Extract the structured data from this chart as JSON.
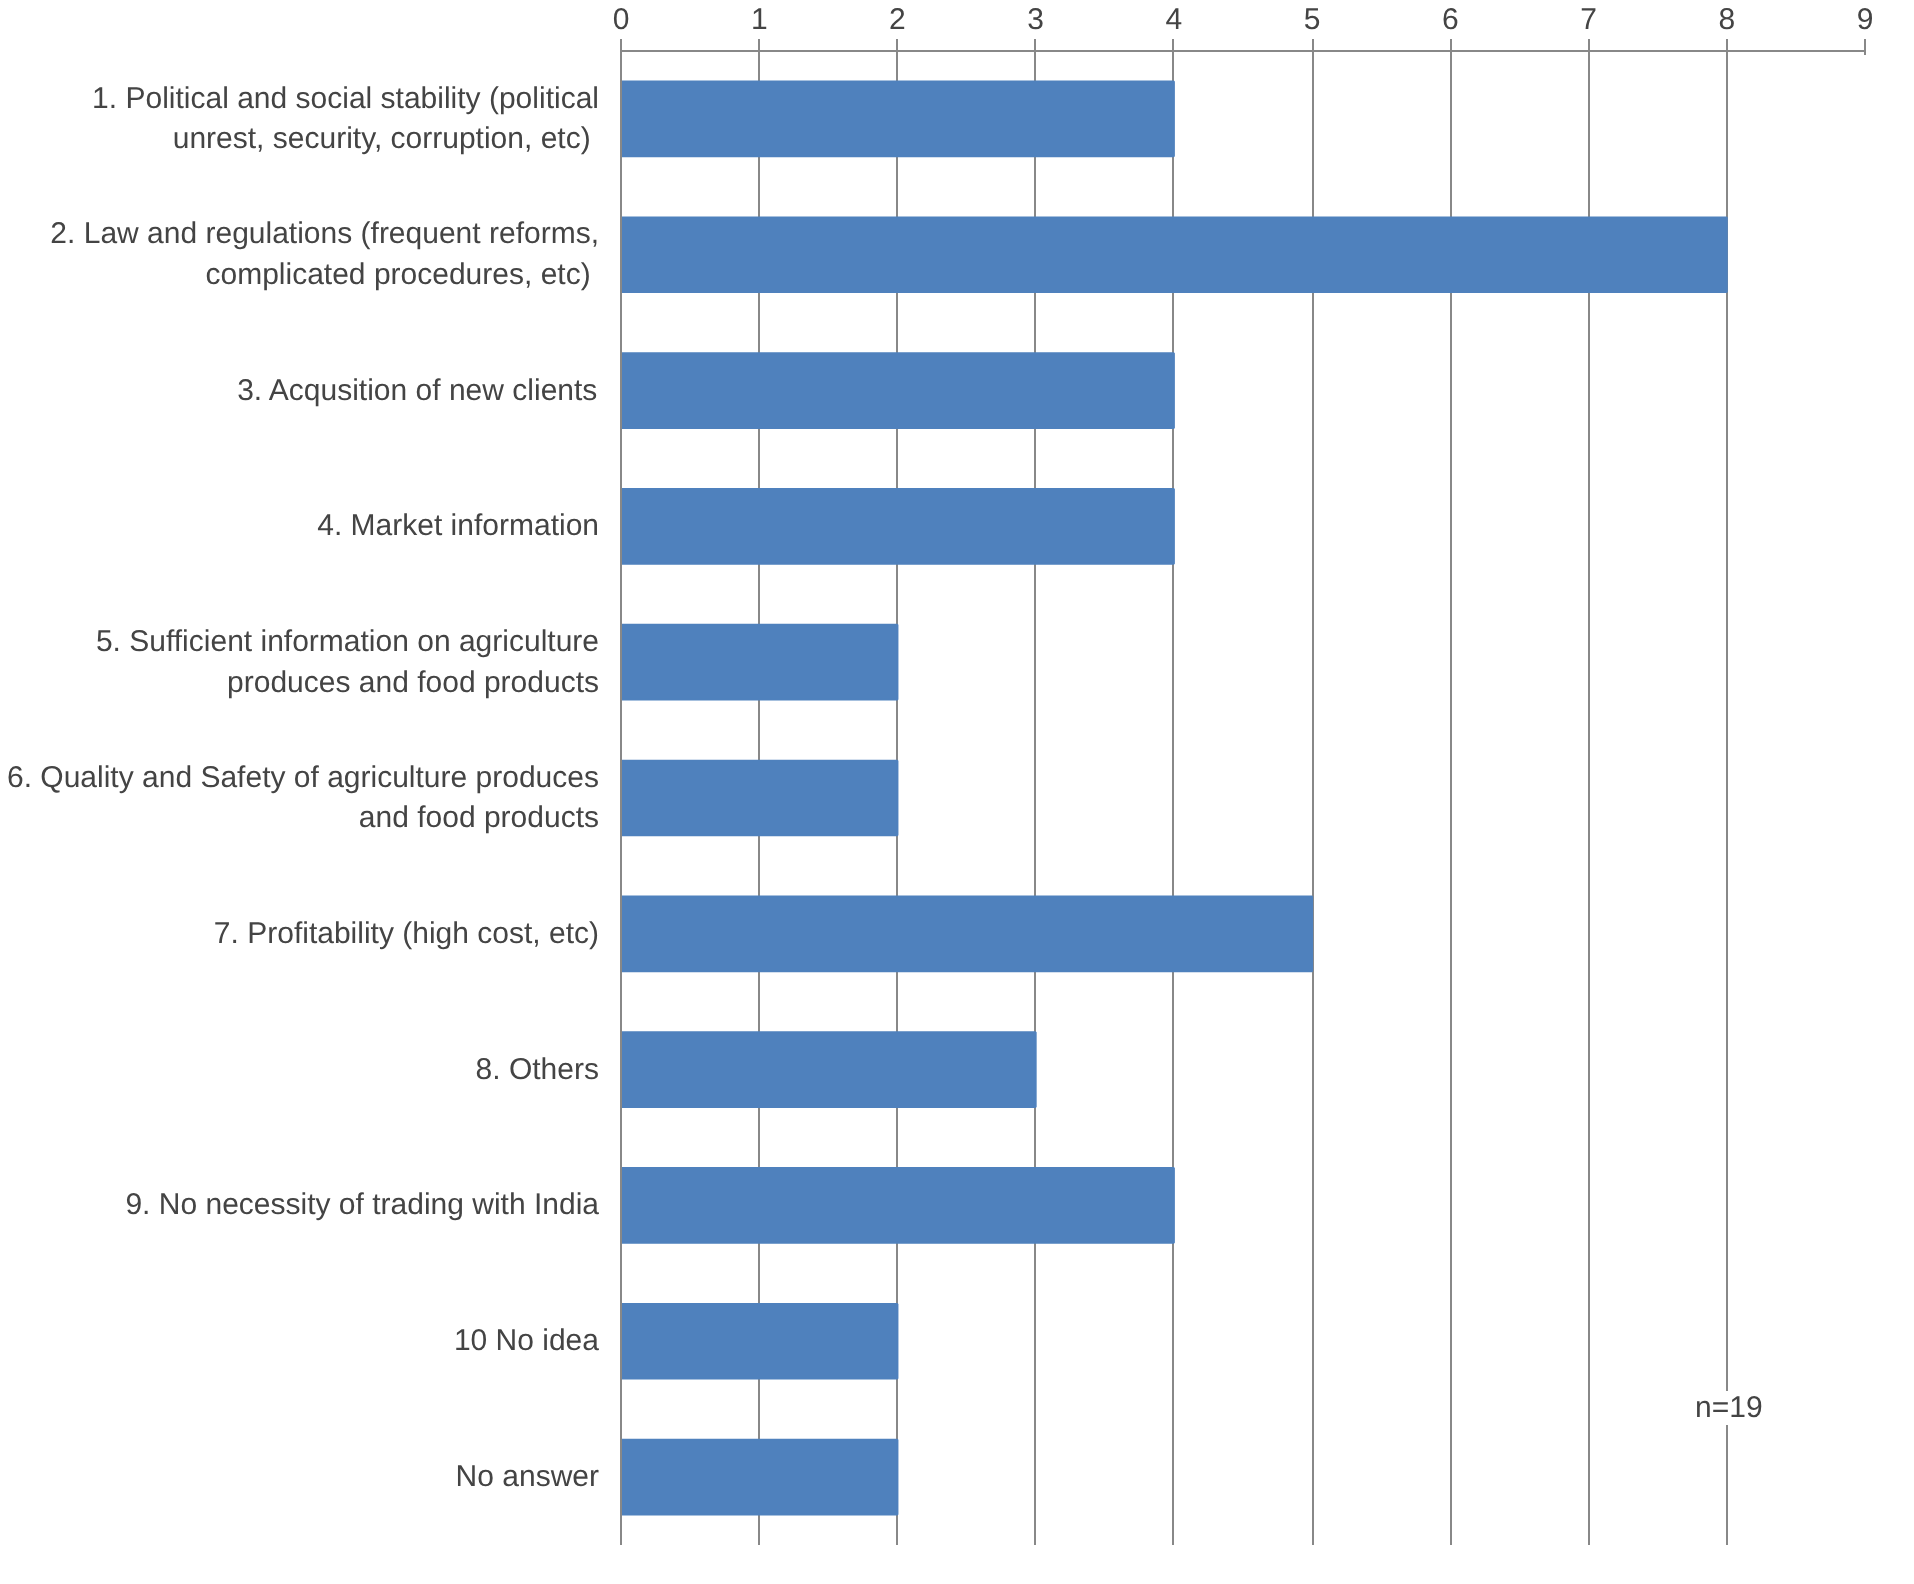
{
  "chart_data": {
    "type": "bar",
    "orientation": "horizontal",
    "categories": [
      "1. Political and social stability (political unrest, security, corruption,  etc)",
      "2. Law and regulations (frequent reforms, complicated procedures,  etc)",
      "3. Acqusition of new clients",
      "4. Market information",
      "5. Sufficient information on agriculture produces and food products",
      "6. Quality and Safety of agriculture produces and food products",
      "7. Profitability (high cost, etc)",
      "8. Others",
      "9. No necessity of trading with India",
      "10 No idea",
      "No answer"
    ],
    "values": [
      4,
      8,
      4,
      4,
      2,
      2,
      5,
      3,
      4,
      2,
      2
    ],
    "color": "#4f81bd",
    "xlim": [
      0,
      9
    ],
    "xticks": [
      0,
      1,
      2,
      3,
      4,
      5,
      6,
      7,
      8,
      9
    ],
    "grid": "x",
    "annotations": [
      "n=19"
    ]
  }
}
